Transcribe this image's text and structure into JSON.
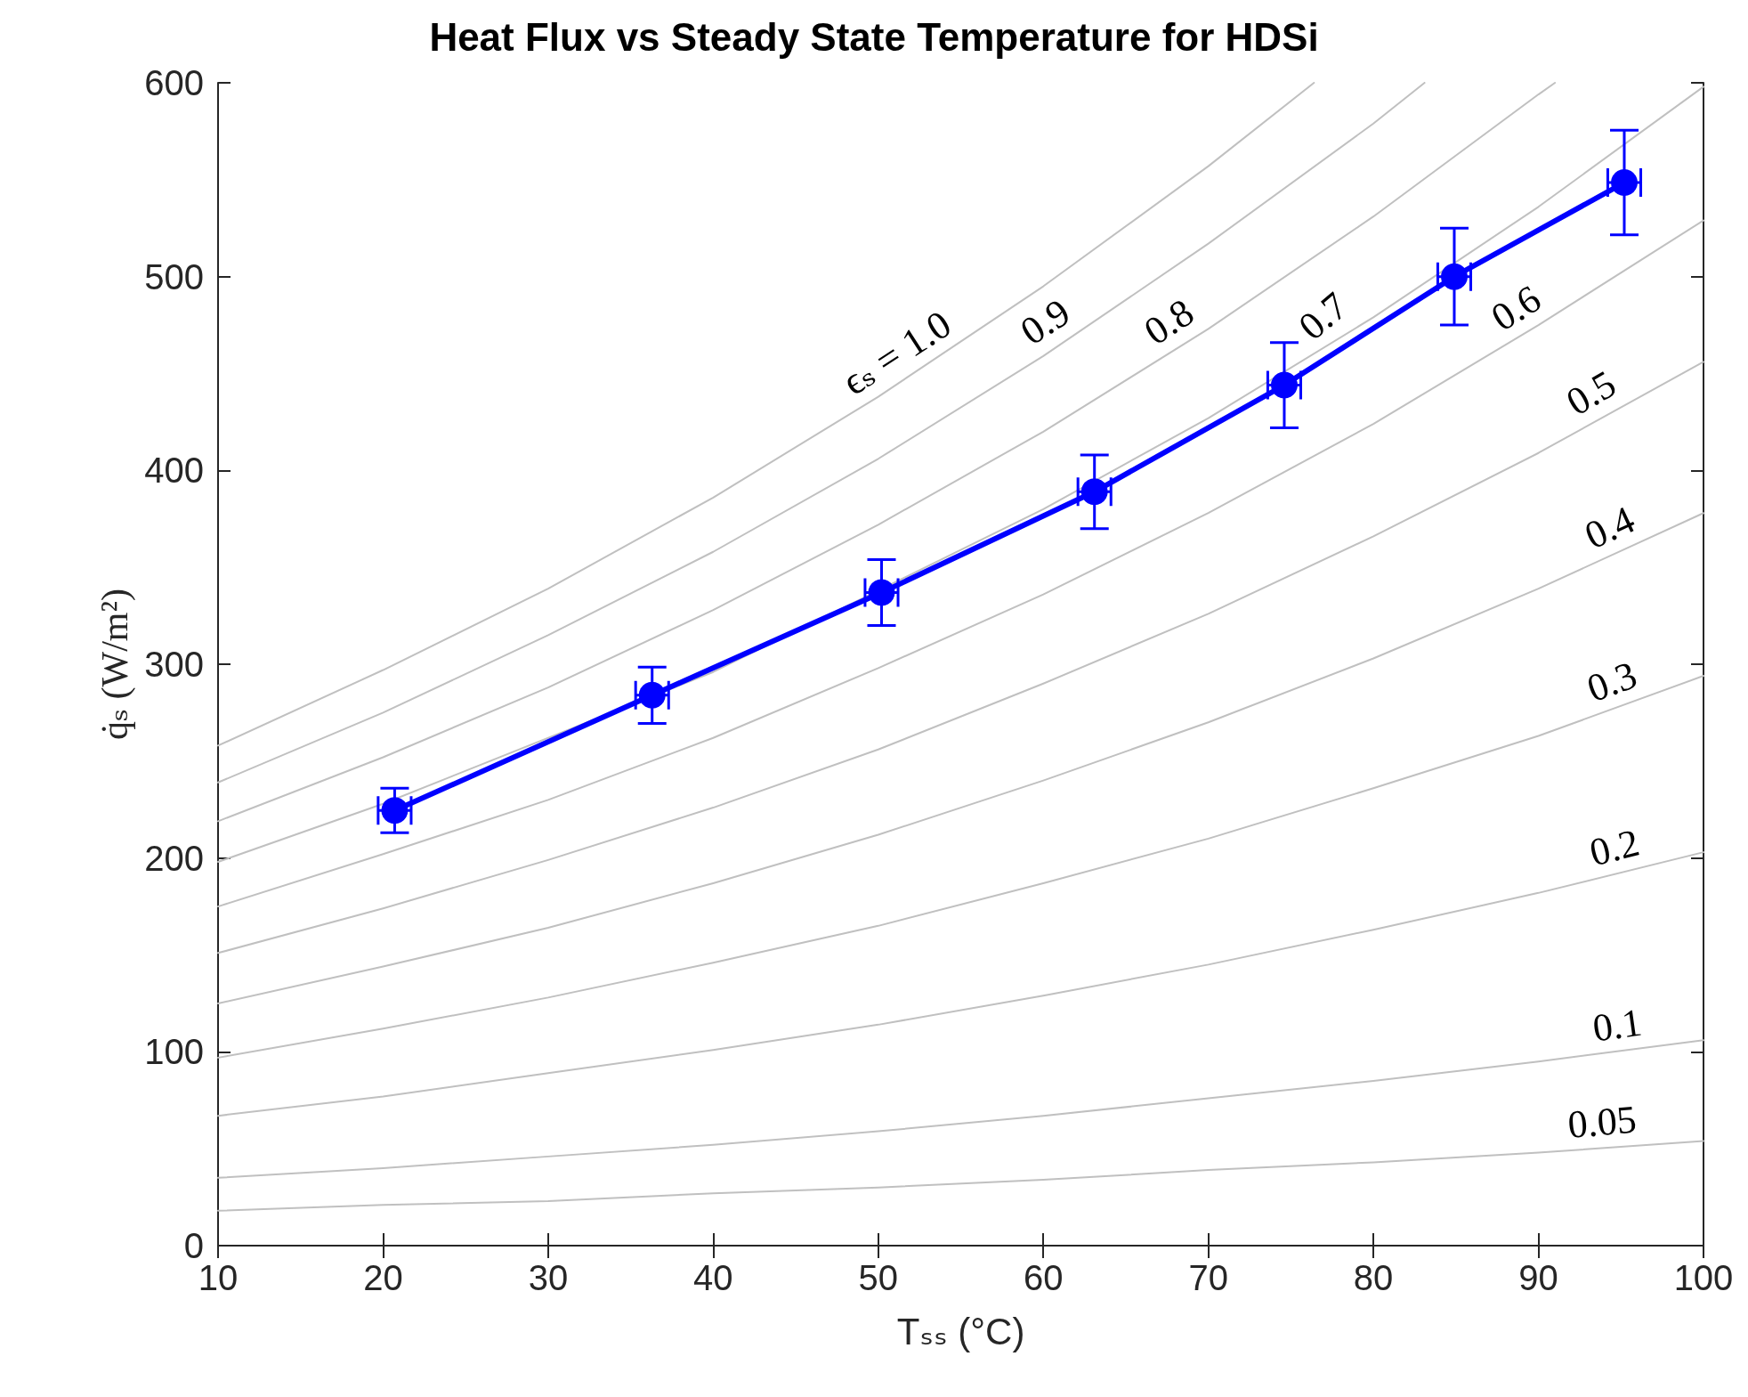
{
  "chart_data": {
    "type": "line",
    "title": "Heat Flux vs Steady State Temperature for HDSi",
    "xlabel": "Tₛₛ (°C)",
    "ylabel": "q̇ₛ (W/m²)",
    "xlim": [
      10,
      100
    ],
    "xticks": [
      10,
      20,
      30,
      40,
      50,
      60,
      70,
      80,
      90,
      100
    ],
    "ylim": [
      0,
      600
    ],
    "yticks": [
      0,
      100,
      200,
      300,
      400,
      500,
      600
    ],
    "grid": false,
    "marker": "circle",
    "line_style": "solid",
    "x": [
      20.7,
      36.3,
      50.2,
      63.1,
      74.6,
      84.9,
      95.2
    ],
    "series": [
      {
        "color": "#0000ff",
        "values": [
          224.5,
          284,
          337,
          389,
          444,
          500,
          548.5
        ],
        "errors": [
          11.5,
          14.5,
          17,
          19,
          22,
          25,
          27
        ],
        "xerrors": [
          1,
          1,
          1,
          1,
          1,
          1,
          1
        ]
      },
      {
        "type": "line",
        "marker": "none",
        "color": "#c0c0c0",
        "x": [
          10,
          20,
          30,
          40,
          50,
          60,
          70,
          76.4
        ],
        "values": [
          258,
          297,
          339,
          386,
          438,
          495,
          557,
          600
        ]
      },
      {
        "type": "line",
        "marker": "none",
        "color": "#c0c0c0",
        "x": [
          10,
          20,
          30,
          40,
          50,
          60,
          70,
          80,
          83.1
        ],
        "values": [
          239,
          275,
          315,
          358,
          406,
          459,
          517,
          579,
          600
        ]
      },
      {
        "type": "line",
        "marker": "none",
        "color": "#c0c0c0",
        "x": [
          10,
          20,
          30,
          40,
          50,
          60,
          70,
          80,
          90,
          91
        ],
        "values": [
          219,
          252,
          288,
          328,
          372,
          420,
          473,
          531,
          594,
          600
        ]
      },
      {
        "type": "line",
        "marker": "none",
        "color": "#c0c0c0",
        "x": [
          10,
          20,
          30,
          40,
          50,
          60,
          70,
          80,
          90,
          100
        ],
        "values": [
          198,
          228,
          null,
          296,
          null,
          380,
          427,
          479,
          536,
          598
        ]
      },
      {
        "type": "line",
        "marker": "none",
        "color": "#c0c0c0",
        "x": [
          10,
          20,
          30,
          40,
          50,
          60,
          70,
          80,
          90,
          100
        ],
        "values": [
          175,
          202,
          230,
          262,
          298,
          336,
          378,
          424,
          475,
          529
        ]
      },
      {
        "type": "line",
        "marker": "none",
        "color": "#c0c0c0",
        "x": [
          10,
          20,
          30,
          40,
          50,
          60,
          70,
          80,
          90,
          100
        ],
        "values": [
          151,
          174,
          199,
          226,
          256,
          290,
          326,
          366,
          409,
          456
        ]
      },
      {
        "type": "line",
        "marker": "none",
        "color": "#c0c0c0",
        "x": [
          10,
          20,
          30,
          40,
          50,
          60,
          70,
          80,
          90,
          100
        ],
        "values": [
          125,
          144,
          164,
          187,
          212,
          240,
          270,
          303,
          339,
          378
        ]
      },
      {
        "type": "line",
        "marker": "none",
        "color": "#c0c0c0",
        "x": [
          10,
          20,
          30,
          40,
          50,
          60,
          70,
          80,
          90,
          100
        ],
        "values": [
          97,
          112,
          128,
          146,
          165,
          187,
          210,
          236,
          263,
          294
        ]
      },
      {
        "type": "line",
        "marker": "none",
        "color": "#c0c0c0",
        "x": [
          10,
          20,
          30,
          40,
          50,
          60,
          70,
          80,
          90,
          100
        ],
        "values": [
          67,
          77,
          89,
          101,
          114,
          129,
          145,
          163,
          182,
          203
        ]
      },
      {
        "type": "line",
        "marker": "none",
        "color": "#c0c0c0",
        "x": [
          10,
          20,
          30,
          40,
          50,
          60,
          70,
          80,
          90,
          100
        ],
        "values": [
          35,
          40,
          46,
          52,
          59,
          67,
          76,
          85,
          95,
          106
        ]
      },
      {
        "type": "line",
        "marker": "none",
        "color": "#c0c0c0",
        "x": [
          10,
          20,
          30,
          40,
          50,
          60,
          70,
          80,
          90,
          100
        ],
        "values": [
          18,
          21,
          23,
          27,
          30,
          34,
          39,
          43,
          48,
          54
        ]
      }
    ],
    "annotations": [
      {
        "text": "ϵₛ = 1.0",
        "x": 52,
        "y": 449
      },
      {
        "text": "0.9",
        "x": 61,
        "y": 465
      },
      {
        "text": "0.8",
        "x": 68.5,
        "y": 465
      },
      {
        "text": "0.7",
        "x": 78,
        "y": 469
      },
      {
        "text": "0.6",
        "x": 89.5,
        "y": 472
      },
      {
        "text": "0.5",
        "x": 94,
        "y": 428
      },
      {
        "text": "0.4",
        "x": 95,
        "y": 358
      },
      {
        "text": "0.3",
        "x": 95,
        "y": 278
      },
      {
        "text": "0.2",
        "x": 95,
        "y": 192
      },
      {
        "text": "0.1",
        "x": 95,
        "y": 100
      },
      {
        "text": "0.05",
        "x": 94,
        "y": 50
      }
    ]
  }
}
